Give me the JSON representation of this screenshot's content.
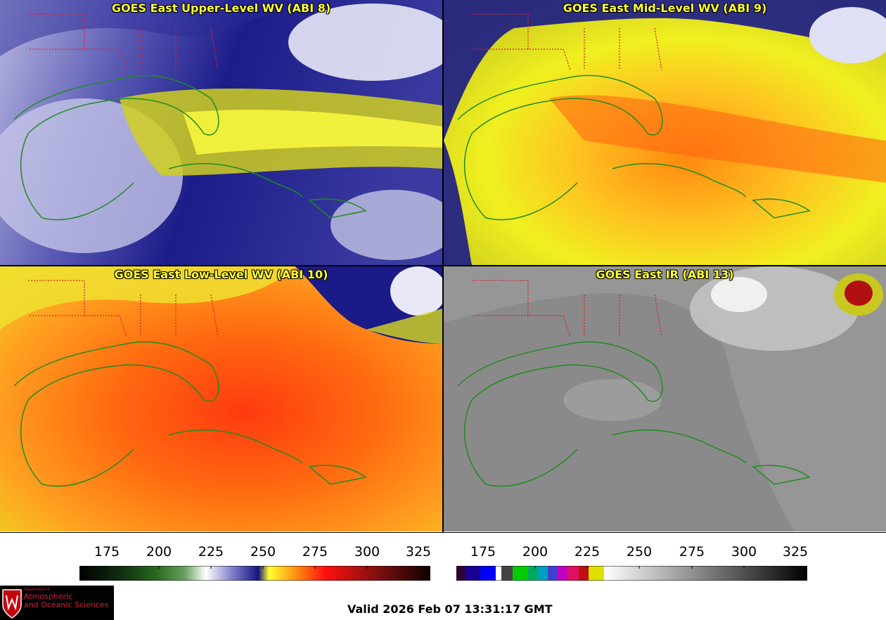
{
  "panels": [
    {
      "title": "GOES East Upper-Level WV (ABI 8)"
    },
    {
      "title": "GOES East Mid-Level WV (ABI 9)"
    },
    {
      "title": "GOES East Low-Level WV (ABI 10)"
    },
    {
      "title": "GOES East IR (ABI 13)"
    }
  ],
  "colorbar_wv": {
    "ticks": [
      "175",
      "200",
      "225",
      "250",
      "275",
      "300",
      "325"
    ]
  },
  "colorbar_ir": {
    "ticks": [
      "175",
      "200",
      "225",
      "250",
      "275",
      "300",
      "325"
    ]
  },
  "logo": {
    "small": "Department of",
    "line1": "Atmospheric",
    "line2": "and Oceanic Sciences"
  },
  "valid_time": "Valid 2026 Feb 07 13:31:17 GMT",
  "colors": {
    "title": "#ffff33",
    "coast": "#1f8c1f",
    "borders": "#e0202a"
  }
}
